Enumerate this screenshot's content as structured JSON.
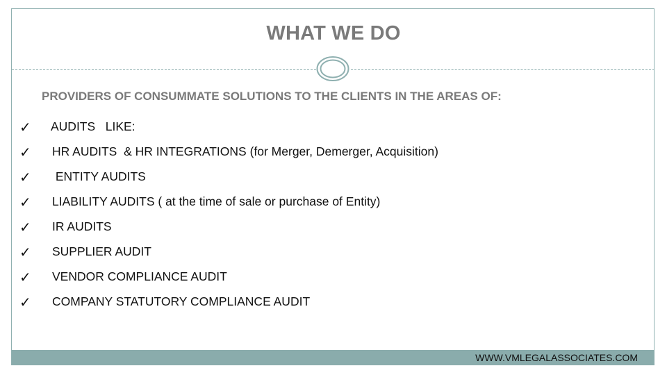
{
  "slide": {
    "title": "WHAT WE DO",
    "subtitle": "PROVIDERS OF CONSUMMATE SOLUTIONS TO THE CLIENTS IN THE AREAS OF:",
    "items": [
      {
        "text": "AUDITS   LIKE:"
      },
      {
        "text": "HR AUDITS  & HR INTEGRATIONS (for Merger, Demerger, Acquisition)"
      },
      {
        "text": " ENTITY AUDITS"
      },
      {
        "text": "LIABILITY AUDITS ( at the time of sale or purchase of Entity)"
      },
      {
        "text": "IR AUDITS"
      },
      {
        "text": "SUPPLIER AUDIT"
      },
      {
        "text": "VENDOR COMPLIANCE AUDIT"
      },
      {
        "text": "COMPANY STATUTORY COMPLIANCE AUDIT"
      }
    ],
    "check_glyph": "✓",
    "footer": "WWW.VMLEGALASSOCIATES.COM"
  },
  "colors": {
    "accent": "#8aacac",
    "title": "#7a7a7a",
    "text": "#111111"
  }
}
